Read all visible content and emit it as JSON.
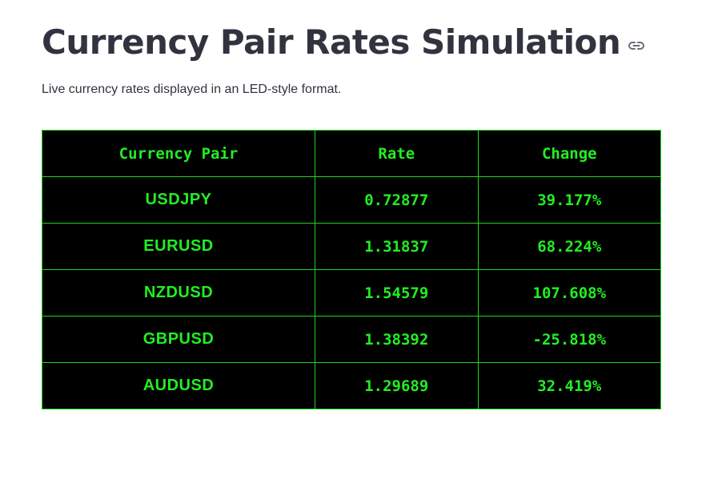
{
  "header": {
    "title": "Currency Pair Rates Simulation",
    "anchor_icon": "link-icon",
    "subtitle": "Live currency rates displayed in an LED-style format."
  },
  "table": {
    "columns": [
      "Currency Pair",
      "Rate",
      "Change"
    ],
    "rows": [
      {
        "pair": "USDJPY",
        "rate": "0.72877",
        "change": "39.177%"
      },
      {
        "pair": "EURUSD",
        "rate": "1.31837",
        "change": "68.224%"
      },
      {
        "pair": "NZDUSD",
        "rate": "1.54579",
        "change": "107.608%"
      },
      {
        "pair": "GBPUSD",
        "rate": "1.38392",
        "change": "-25.818%"
      },
      {
        "pair": "AUDUSD",
        "rate": "1.29689",
        "change": "32.419%"
      }
    ]
  },
  "colors": {
    "led_text": "#22ee22",
    "led_border": "#1fd61f",
    "led_background": "#000000",
    "title_text": "#31333f"
  }
}
